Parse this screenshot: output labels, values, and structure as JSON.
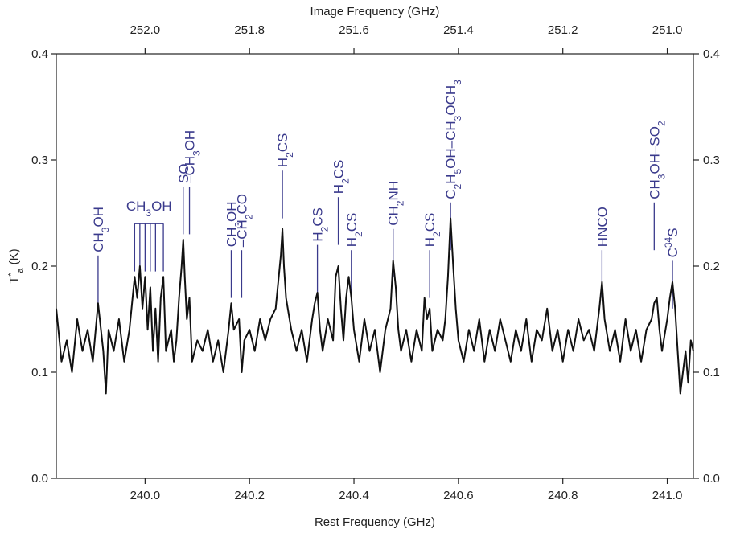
{
  "chart_data": {
    "type": "line",
    "xlabel": "Rest Frequency (GHz)",
    "x2label": "Image Frequency (GHz)",
    "ylabel": "T",
    "ylabel_sup": "*",
    "ylabel_sub": "a",
    "ylabel_unit": " (K)",
    "xlim": [
      239.83,
      241.05
    ],
    "ylim": [
      0.0,
      0.4
    ],
    "x_ticks": [
      240.0,
      240.2,
      240.4,
      240.6,
      240.8,
      241.0
    ],
    "x_tick_labels": [
      "240.0",
      "240.2",
      "240.4",
      "240.6",
      "240.8",
      "241.0"
    ],
    "y_ticks": [
      0.0,
      0.1,
      0.2,
      0.3,
      0.4
    ],
    "y_tick_labels": [
      "0.0",
      "0.1",
      "0.2",
      "0.3",
      "0.4"
    ],
    "x2_ticks": [
      252.0,
      251.8,
      251.6,
      251.4,
      251.2,
      251.0
    ],
    "x2_tick_labels": [
      "252.0",
      "251.8",
      "251.6",
      "251.4",
      "251.2",
      "251.0"
    ],
    "x2_mapping_sum": 492.0,
    "grid": false,
    "line_color": "#111111",
    "label_color": "#3a3a8c",
    "series": [
      {
        "points": [
          [
            239.83,
            0.16
          ],
          [
            239.84,
            0.11
          ],
          [
            239.85,
            0.13
          ],
          [
            239.86,
            0.1
          ],
          [
            239.87,
            0.15
          ],
          [
            239.88,
            0.12
          ],
          [
            239.89,
            0.14
          ],
          [
            239.9,
            0.11
          ],
          [
            239.91,
            0.165
          ],
          [
            239.92,
            0.12
          ],
          [
            239.925,
            0.08
          ],
          [
            239.93,
            0.14
          ],
          [
            239.94,
            0.12
          ],
          [
            239.95,
            0.15
          ],
          [
            239.96,
            0.11
          ],
          [
            239.97,
            0.14
          ],
          [
            239.98,
            0.19
          ],
          [
            239.985,
            0.17
          ],
          [
            239.99,
            0.2
          ],
          [
            239.995,
            0.16
          ],
          [
            240.0,
            0.19
          ],
          [
            240.005,
            0.14
          ],
          [
            240.01,
            0.18
          ],
          [
            240.015,
            0.12
          ],
          [
            240.02,
            0.16
          ],
          [
            240.025,
            0.11
          ],
          [
            240.03,
            0.17
          ],
          [
            240.035,
            0.19
          ],
          [
            240.04,
            0.12
          ],
          [
            240.05,
            0.14
          ],
          [
            240.055,
            0.11
          ],
          [
            240.06,
            0.13
          ],
          [
            240.065,
            0.17
          ],
          [
            240.07,
            0.2
          ],
          [
            240.073,
            0.225
          ],
          [
            240.076,
            0.19
          ],
          [
            240.08,
            0.15
          ],
          [
            240.085,
            0.17
          ],
          [
            240.09,
            0.11
          ],
          [
            240.1,
            0.13
          ],
          [
            240.11,
            0.12
          ],
          [
            240.12,
            0.14
          ],
          [
            240.13,
            0.11
          ],
          [
            240.14,
            0.13
          ],
          [
            240.15,
            0.1
          ],
          [
            240.16,
            0.14
          ],
          [
            240.165,
            0.165
          ],
          [
            240.17,
            0.14
          ],
          [
            240.18,
            0.15
          ],
          [
            240.185,
            0.1
          ],
          [
            240.19,
            0.13
          ],
          [
            240.2,
            0.14
          ],
          [
            240.21,
            0.12
          ],
          [
            240.22,
            0.15
          ],
          [
            240.23,
            0.13
          ],
          [
            240.24,
            0.15
          ],
          [
            240.25,
            0.16
          ],
          [
            240.26,
            0.21
          ],
          [
            240.263,
            0.235
          ],
          [
            240.266,
            0.2
          ],
          [
            240.27,
            0.17
          ],
          [
            240.28,
            0.14
          ],
          [
            240.29,
            0.12
          ],
          [
            240.3,
            0.14
          ],
          [
            240.31,
            0.11
          ],
          [
            240.32,
            0.15
          ],
          [
            240.325,
            0.165
          ],
          [
            240.33,
            0.175
          ],
          [
            240.335,
            0.14
          ],
          [
            240.34,
            0.12
          ],
          [
            240.35,
            0.15
          ],
          [
            240.36,
            0.13
          ],
          [
            240.365,
            0.19
          ],
          [
            240.37,
            0.2
          ],
          [
            240.375,
            0.16
          ],
          [
            240.38,
            0.13
          ],
          [
            240.385,
            0.17
          ],
          [
            240.39,
            0.19
          ],
          [
            240.395,
            0.17
          ],
          [
            240.4,
            0.14
          ],
          [
            240.41,
            0.11
          ],
          [
            240.42,
            0.15
          ],
          [
            240.43,
            0.12
          ],
          [
            240.44,
            0.14
          ],
          [
            240.45,
            0.1
          ],
          [
            240.46,
            0.14
          ],
          [
            240.47,
            0.16
          ],
          [
            240.475,
            0.205
          ],
          [
            240.48,
            0.18
          ],
          [
            240.485,
            0.14
          ],
          [
            240.49,
            0.12
          ],
          [
            240.5,
            0.14
          ],
          [
            240.51,
            0.11
          ],
          [
            240.52,
            0.14
          ],
          [
            240.53,
            0.12
          ],
          [
            240.535,
            0.17
          ],
          [
            240.54,
            0.15
          ],
          [
            240.545,
            0.16
          ],
          [
            240.55,
            0.12
          ],
          [
            240.56,
            0.14
          ],
          [
            240.57,
            0.13
          ],
          [
            240.575,
            0.15
          ],
          [
            240.58,
            0.19
          ],
          [
            240.585,
            0.245
          ],
          [
            240.59,
            0.2
          ],
          [
            240.595,
            0.16
          ],
          [
            240.6,
            0.13
          ],
          [
            240.61,
            0.11
          ],
          [
            240.62,
            0.14
          ],
          [
            240.63,
            0.12
          ],
          [
            240.64,
            0.15
          ],
          [
            240.65,
            0.11
          ],
          [
            240.66,
            0.14
          ],
          [
            240.67,
            0.12
          ],
          [
            240.68,
            0.15
          ],
          [
            240.69,
            0.13
          ],
          [
            240.7,
            0.11
          ],
          [
            240.71,
            0.14
          ],
          [
            240.72,
            0.12
          ],
          [
            240.73,
            0.15
          ],
          [
            240.74,
            0.11
          ],
          [
            240.75,
            0.14
          ],
          [
            240.76,
            0.13
          ],
          [
            240.77,
            0.16
          ],
          [
            240.78,
            0.12
          ],
          [
            240.79,
            0.14
          ],
          [
            240.8,
            0.11
          ],
          [
            240.81,
            0.14
          ],
          [
            240.82,
            0.12
          ],
          [
            240.83,
            0.15
          ],
          [
            240.84,
            0.13
          ],
          [
            240.85,
            0.14
          ],
          [
            240.86,
            0.12
          ],
          [
            240.87,
            0.16
          ],
          [
            240.875,
            0.185
          ],
          [
            240.88,
            0.15
          ],
          [
            240.89,
            0.12
          ],
          [
            240.9,
            0.14
          ],
          [
            240.91,
            0.11
          ],
          [
            240.92,
            0.15
          ],
          [
            240.93,
            0.12
          ],
          [
            240.94,
            0.14
          ],
          [
            240.95,
            0.11
          ],
          [
            240.96,
            0.14
          ],
          [
            240.97,
            0.15
          ],
          [
            240.975,
            0.165
          ],
          [
            240.98,
            0.17
          ],
          [
            240.985,
            0.14
          ],
          [
            240.99,
            0.12
          ],
          [
            241.0,
            0.15
          ],
          [
            241.005,
            0.17
          ],
          [
            241.01,
            0.185
          ],
          [
            241.015,
            0.16
          ],
          [
            241.02,
            0.12
          ],
          [
            241.025,
            0.08
          ],
          [
            241.03,
            0.1
          ],
          [
            241.035,
            0.12
          ],
          [
            241.04,
            0.09
          ],
          [
            241.045,
            0.13
          ],
          [
            241.05,
            0.12
          ]
        ]
      }
    ],
    "line_labels": [
      {
        "x": 239.91,
        "top": 0.21,
        "text": "CH",
        "sub": "3",
        "tail": "OH"
      },
      {
        "x": 240.073,
        "top": 0.275,
        "text": "SO",
        "sub": "",
        "tail": ""
      },
      {
        "x": 240.085,
        "top": 0.275,
        "text": "–CH",
        "sub": "3",
        "tail": "OH"
      },
      {
        "x": 240.165,
        "top": 0.215,
        "text": "CH",
        "sub": "3",
        "tail": "OH"
      },
      {
        "x": 240.185,
        "top": 0.215,
        "text": "–CH",
        "sub": "2",
        "tail": "CO"
      },
      {
        "x": 240.263,
        "top": 0.29,
        "text": "H",
        "sub": "2",
        "tail": "CS"
      },
      {
        "x": 240.33,
        "top": 0.22,
        "text": "H",
        "sub": "2",
        "tail": "CS"
      },
      {
        "x": 240.37,
        "top": 0.265,
        "text": "H",
        "sub": "2",
        "tail": "CS"
      },
      {
        "x": 240.395,
        "top": 0.215,
        "text": "H",
        "sub": "2",
        "tail": "CS"
      },
      {
        "x": 240.475,
        "top": 0.235,
        "text": "CH",
        "sub": "2",
        "tail": "NH"
      },
      {
        "x": 240.545,
        "top": 0.215,
        "text": "H",
        "sub": "2",
        "tail": "CS"
      },
      {
        "x": 240.585,
        "top": 0.26,
        "text": "C",
        "sub": "2",
        "tail": "H",
        "sub2": "5",
        "tail2": "OH–CH",
        "sub3": "3",
        "tail3": "OCH",
        "sub4": "3"
      },
      {
        "x": 240.875,
        "top": 0.215,
        "text": "HNCO",
        "sub": "",
        "tail": ""
      },
      {
        "x": 240.975,
        "top": 0.26,
        "text": "CH",
        "sub": "3",
        "tail": "OH–SO",
        "sub2": "2"
      },
      {
        "x": 241.01,
        "top": 0.205,
        "text": "C",
        "sup": "34",
        "tail": "S"
      }
    ],
    "cluster_label": {
      "text": "CH",
      "sub": "3",
      "tail": "OH",
      "x_lines": [
        239.98,
        239.99,
        240.0,
        240.01,
        240.02,
        240.035
      ],
      "top": 0.24
    }
  }
}
